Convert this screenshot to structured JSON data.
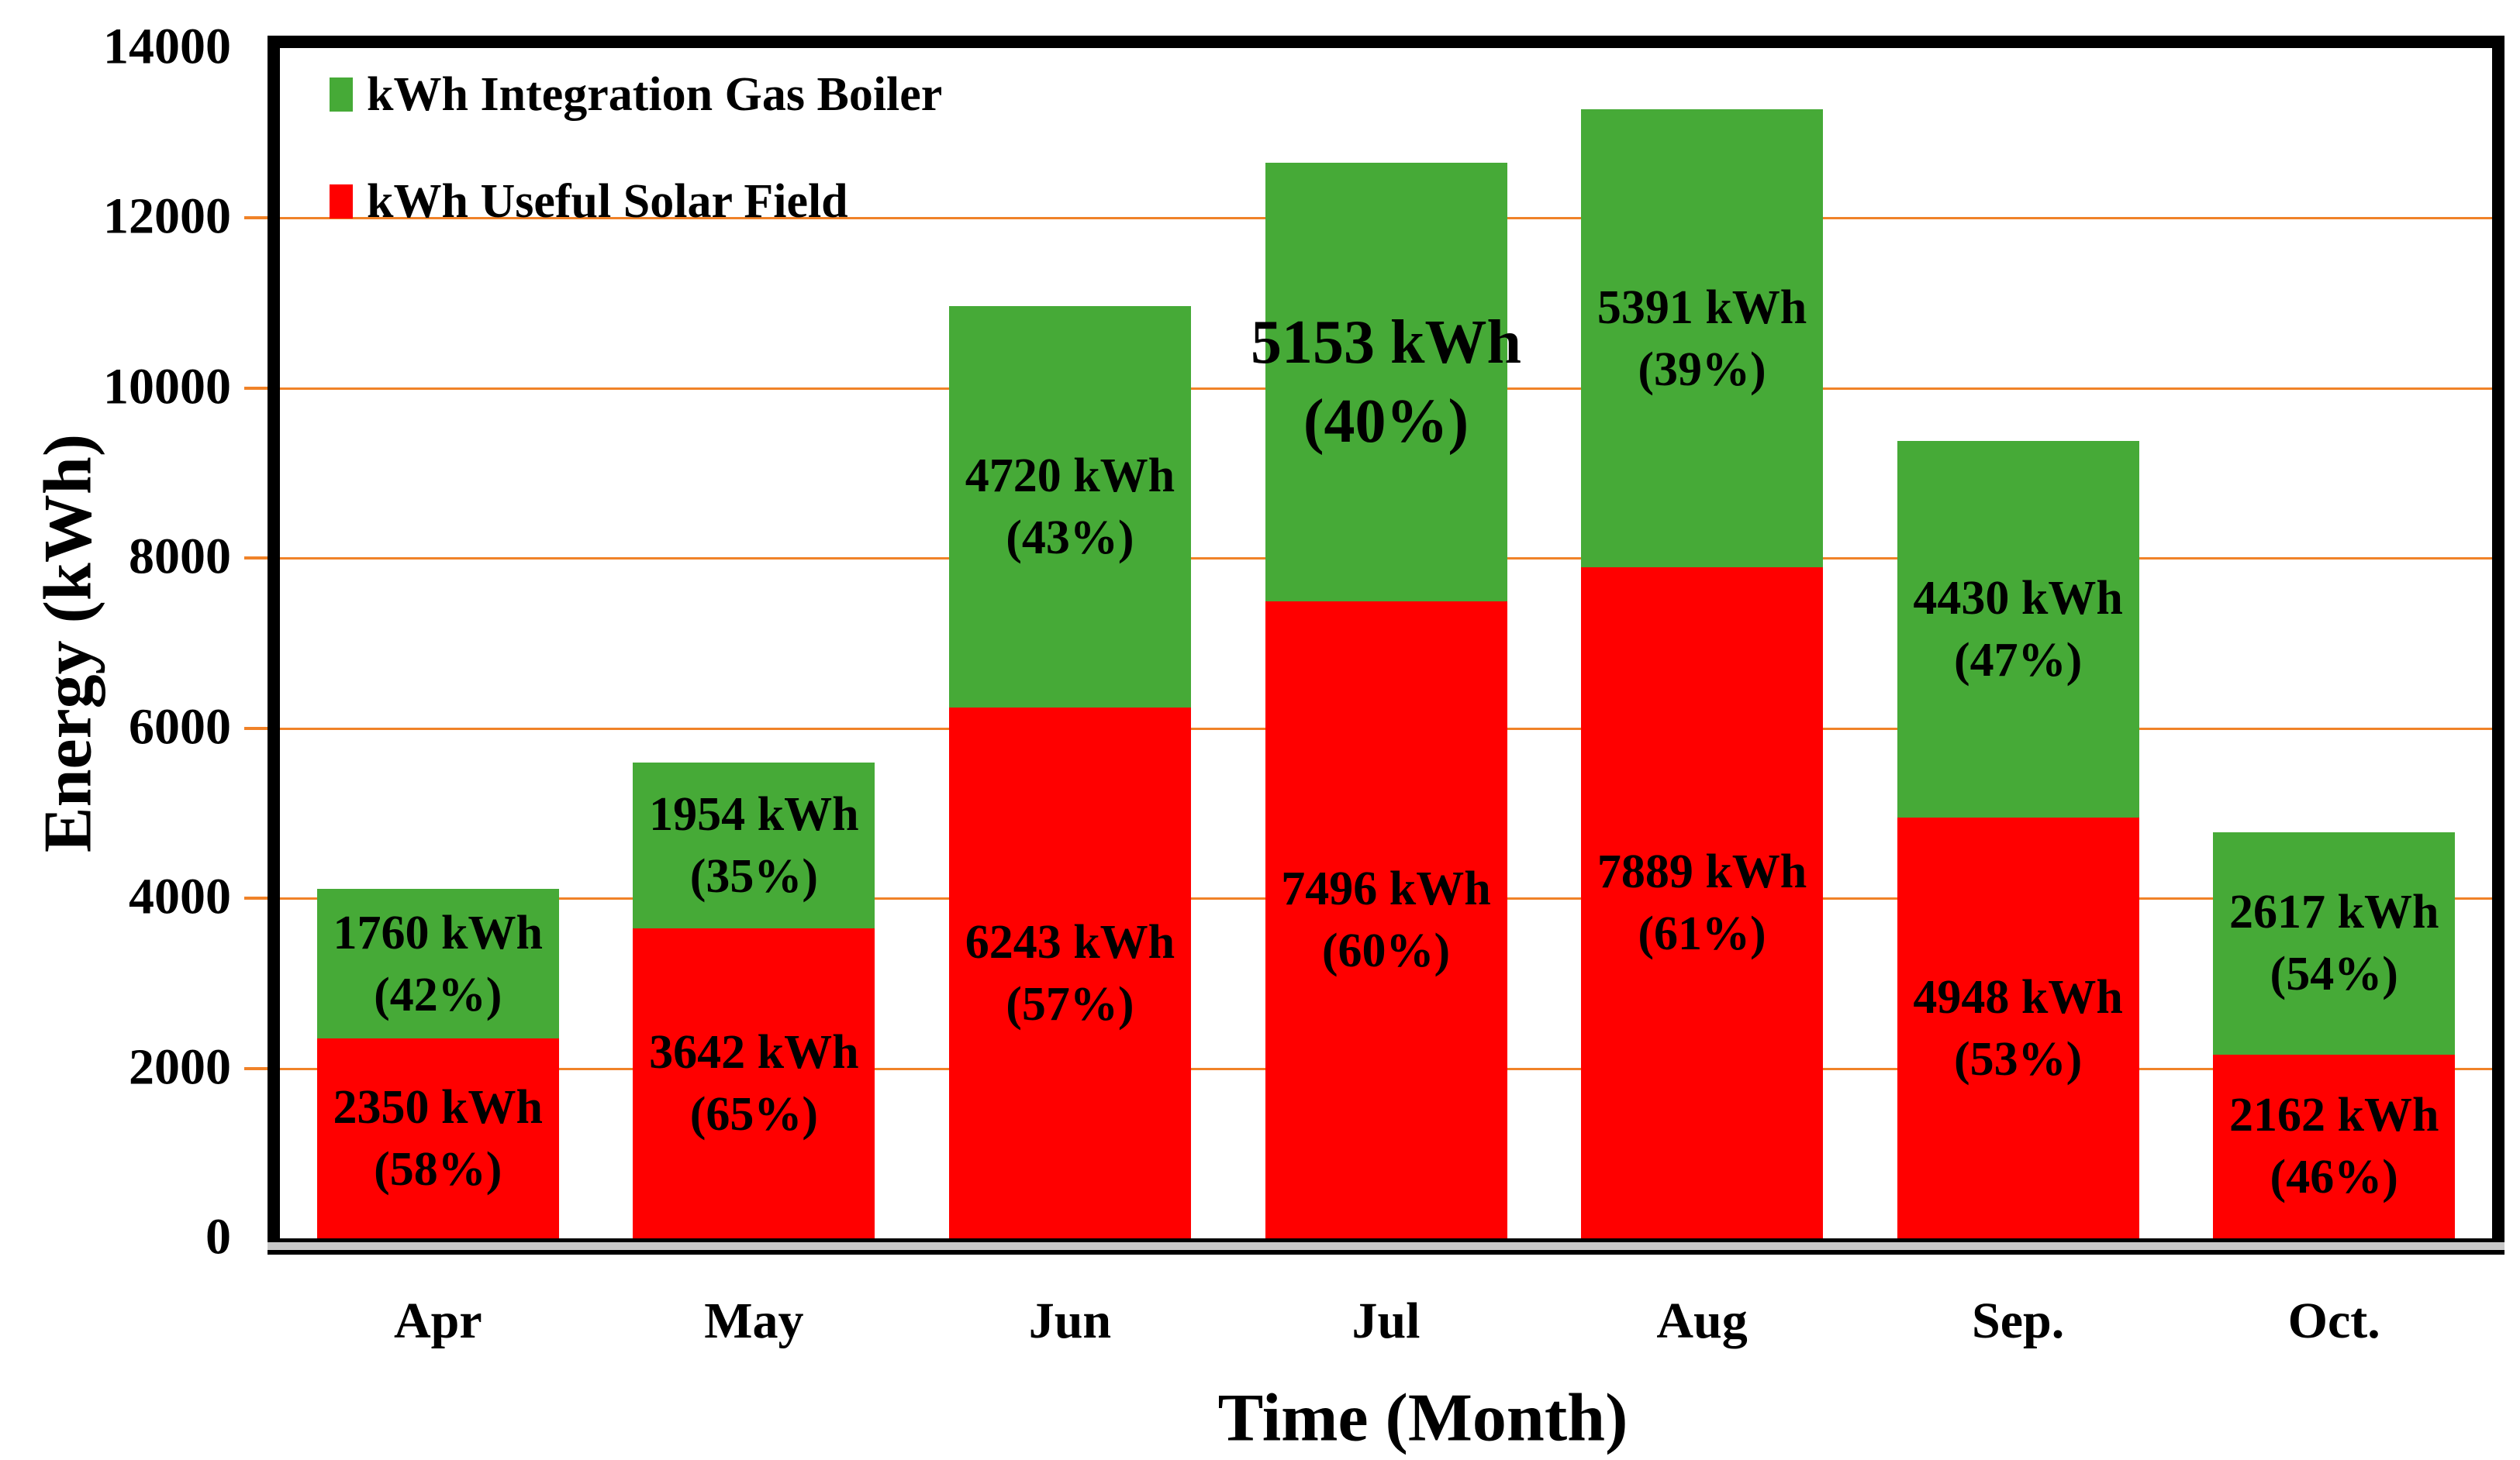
{
  "chart_data": {
    "type": "bar",
    "stacked": true,
    "title": "",
    "xlabel": "Time (Month)",
    "ylabel": "Energy (kWh)",
    "ylim": [
      0,
      14000
    ],
    "ytick_step": 2000,
    "yticks": [
      "0",
      "2000",
      "4000",
      "6000",
      "8000",
      "10000",
      "12000",
      "14000"
    ],
    "grid": "horizontal-orange-lines",
    "legend_position": "top-left-inside",
    "categories": [
      "Apr",
      "May",
      "Jun",
      "Jul",
      "Aug",
      "Sep.",
      "Oct."
    ],
    "series": [
      {
        "name": "kWh Useful Solar Field",
        "color": "#FF0000",
        "values": [
          2350,
          3642,
          6243,
          7496,
          7889,
          4948,
          2162
        ],
        "pct": [
          58,
          65,
          57,
          60,
          61,
          53,
          46
        ],
        "label_lines": [
          [
            "2350 kWh",
            "(58%)"
          ],
          [
            "3642 kWh",
            "(65%)"
          ],
          [
            "6243 kWh",
            "(57%)"
          ],
          [
            "7496 kWh",
            "(60%)"
          ],
          [
            "7889 kWh",
            "(61%)"
          ],
          [
            "4948 kWh",
            "(53%)"
          ],
          [
            "2162 kWh",
            "(46%)"
          ]
        ],
        "emphasized_label_index": -1
      },
      {
        "name": "kWh Integration Gas Boiler",
        "color": "#46AA37",
        "values": [
          1760,
          1954,
          4720,
          5153,
          5391,
          4430,
          2617
        ],
        "pct": [
          42,
          35,
          43,
          40,
          39,
          47,
          54
        ],
        "label_lines": [
          [
            "1760 kWh",
            "(42%)"
          ],
          [
            "1954 kWh",
            "(35%)"
          ],
          [
            "4720 kWh",
            "(43%)"
          ],
          [
            "5153 kWh",
            "(40%)"
          ],
          [
            "5391 kWh",
            "(39%)"
          ],
          [
            "4430 kWh",
            "(47%)"
          ],
          [
            "2617 kWh",
            "(54%)"
          ]
        ],
        "emphasized_label_index": 3
      }
    ],
    "totals": [
      4110,
      5596,
      10963,
      12649,
      13280,
      9378,
      4779
    ],
    "colors": {
      "gridline": "#F08228",
      "tick_mark": "#F08228",
      "axis_border": "#000000",
      "axis_shadow": "#C8C8C8",
      "text": "#000000",
      "background": "#FFFFFF"
    }
  },
  "legend": {
    "items": [
      {
        "label": "kWh Integration Gas Boiler",
        "color": "#46AA37"
      },
      {
        "label": "kWh Useful Solar Field",
        "color": "#FF0000"
      }
    ]
  }
}
